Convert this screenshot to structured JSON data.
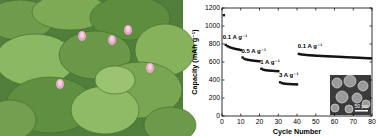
{
  "chart_data": {
    "type": "scatter",
    "x_label": "Cycle Number",
    "y_label": "Capacity (mAh g⁻¹)",
    "x": [
      1,
      2,
      3,
      4,
      5,
      6,
      7,
      8,
      9,
      10,
      11,
      12,
      13,
      14,
      15,
      16,
      17,
      18,
      19,
      20,
      21,
      22,
      23,
      24,
      25,
      26,
      27,
      28,
      29,
      30,
      31,
      32,
      33,
      34,
      35,
      36,
      37,
      38,
      39,
      40,
      41,
      42,
      43,
      44,
      45,
      46,
      47,
      48,
      49,
      50,
      51,
      52,
      53,
      54,
      55,
      56,
      57,
      58,
      59,
      60,
      61,
      62,
      63,
      64,
      65,
      66,
      67,
      68,
      69,
      70,
      71,
      72,
      73,
      74,
      75,
      76,
      77,
      78,
      79,
      80
    ],
    "values": [
      1120,
      790,
      775,
      765,
      758,
      752,
      746,
      742,
      738,
      733,
      650,
      635,
      628,
      624,
      620,
      617,
      614,
      612,
      610,
      608,
      525,
      515,
      510,
      507,
      505,
      503,
      502,
      500,
      499,
      498,
      375,
      365,
      360,
      358,
      356,
      355,
      354,
      353,
      352,
      351,
      690,
      685,
      682,
      680,
      678,
      676,
      675,
      673,
      672,
      670,
      669,
      668,
      667,
      666,
      665,
      664,
      663,
      662,
      661,
      660,
      659,
      658,
      657,
      656,
      655,
      654,
      653,
      652,
      651,
      650,
      649,
      648,
      647,
      646,
      645,
      644,
      643,
      642,
      641,
      640
    ],
    "color": "#111111",
    "marker": "square",
    "xlim": [
      0,
      80
    ],
    "xticks": [
      0,
      10,
      20,
      30,
      40,
      50,
      60,
      70,
      80
    ],
    "ylim": [
      0,
      1200
    ],
    "yticks": [
      0,
      200,
      400,
      600,
      800,
      1000,
      1200
    ],
    "annotations": [
      "0.1 A g⁻¹",
      "0.5 A g⁻¹",
      "1 A g⁻¹",
      "3 A g⁻¹",
      "0.1 A g⁻¹"
    ],
    "inset_scale_label": "50 μm"
  }
}
